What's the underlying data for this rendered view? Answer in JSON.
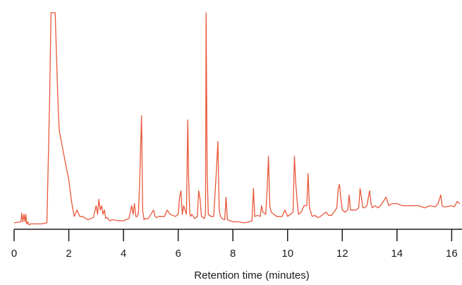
{
  "chart_data": {
    "type": "line",
    "title": "",
    "xlabel": "Retention time (minutes)",
    "ylabel": "",
    "xlim": [
      0,
      16.3
    ],
    "ylim": [
      0,
      100
    ],
    "grid": false,
    "xticks": [
      0,
      2,
      4,
      6,
      8,
      10,
      12,
      14,
      16
    ],
    "xtick_labels": [
      "0",
      "2",
      "4",
      "6",
      "8",
      "10",
      "12",
      "14",
      "16"
    ],
    "series": [
      {
        "color": "#e8573a",
        "x": [
          0,
          0.25,
          0.28,
          0.32,
          0.36,
          0.4,
          0.43,
          0.46,
          0.5,
          0.55,
          0.6,
          0.8,
          1.0,
          1.2,
          1.3,
          1.35,
          1.4,
          1.5,
          1.55,
          1.6,
          1.65,
          1.8,
          2.0,
          2.1,
          2.2,
          2.3,
          2.4,
          2.5,
          2.7,
          2.9,
          3.0,
          3.05,
          3.1,
          3.15,
          3.2,
          3.25,
          3.3,
          3.35,
          3.4,
          3.5,
          3.6,
          3.8,
          4.0,
          4.2,
          4.3,
          4.35,
          4.4,
          4.45,
          4.5,
          4.55,
          4.6,
          4.62,
          4.66,
          4.7,
          4.75,
          4.8,
          4.9,
          5.0,
          5.1,
          5.15,
          5.2,
          5.3,
          5.5,
          5.6,
          5.7,
          5.9,
          6.0,
          6.05,
          6.1,
          6.15,
          6.2,
          6.3,
          6.35,
          6.38,
          6.42,
          6.45,
          6.5,
          6.6,
          6.7,
          6.75,
          6.8,
          6.85,
          6.9,
          6.95,
          7.0,
          7.02,
          7.06,
          7.1,
          7.2,
          7.3,
          7.4,
          7.45,
          7.5,
          7.55,
          7.6,
          7.7,
          7.75,
          7.8,
          8.0,
          8.2,
          8.4,
          8.6,
          8.7,
          8.75,
          8.8,
          8.9,
          9.0,
          9.05,
          9.1,
          9.2,
          9.25,
          9.3,
          9.35,
          9.4,
          9.5,
          9.6,
          9.7,
          9.8,
          9.9,
          10.0,
          10.1,
          10.2,
          10.25,
          10.3,
          10.35,
          10.4,
          10.5,
          10.6,
          10.7,
          10.75,
          10.8,
          10.9,
          11.0,
          11.1,
          11.2,
          11.3,
          11.4,
          11.5,
          11.6,
          11.7,
          11.8,
          11.85,
          11.9,
          11.95,
          12.0,
          12.1,
          12.2,
          12.25,
          12.3,
          12.4,
          12.5,
          12.6,
          12.65,
          12.7,
          12.75,
          12.8,
          12.9,
          13.0,
          13.05,
          13.1,
          13.2,
          13.3,
          13.4,
          13.5,
          13.6,
          13.7,
          13.8,
          13.9,
          14.0,
          14.2,
          14.4,
          14.6,
          14.8,
          15.0,
          15.2,
          15.4,
          15.5,
          15.6,
          15.65,
          15.7,
          15.8,
          16.0,
          16.1,
          16.2,
          16.3
        ],
        "y": [
          2.0,
          2.5,
          6.5,
          2.5,
          6.0,
          2.5,
          6.0,
          1.5,
          2.5,
          1.0,
          1.5,
          1.5,
          1.5,
          2.0,
          60.0,
          100.0,
          100.0,
          100.0,
          80.0,
          60.0,
          45.0,
          35.0,
          22.0,
          12.0,
          5.0,
          8.0,
          5.0,
          5.0,
          3.5,
          4.5,
          10.0,
          6.0,
          13.0,
          8.0,
          10.0,
          6.0,
          8.0,
          4.0,
          4.5,
          3.0,
          3.5,
          3.0,
          3.0,
          4.0,
          10.0,
          6.0,
          11.0,
          5.0,
          5.0,
          7.0,
          25.0,
          35.0,
          52.0,
          8.0,
          3.5,
          4.0,
          4.0,
          6.0,
          8.0,
          5.0,
          4.5,
          5.0,
          5.0,
          8.0,
          6.0,
          5.0,
          6.0,
          14.0,
          17.0,
          6.0,
          10.0,
          6.0,
          50.0,
          24.0,
          7.0,
          5.0,
          6.0,
          4.0,
          5.0,
          17.0,
          13.0,
          5.0,
          4.5,
          4.0,
          6.0,
          100.0,
          25.0,
          6.0,
          5.0,
          5.0,
          27.0,
          40.0,
          8.0,
          5.0,
          4.0,
          3.5,
          14.0,
          3.5,
          2.5,
          2.5,
          2.0,
          2.5,
          3.0,
          18.0,
          5.0,
          5.5,
          5.0,
          10.0,
          7.0,
          6.0,
          17.0,
          33.0,
          10.0,
          7.0,
          6.0,
          5.0,
          5.0,
          5.0,
          8.0,
          5.0,
          6.0,
          7.0,
          33.0,
          20.0,
          12.0,
          6.0,
          7.0,
          10.0,
          10.0,
          25.0,
          9.0,
          5.0,
          5.5,
          4.5,
          5.0,
          6.0,
          7.0,
          5.5,
          5.5,
          7.0,
          9.0,
          18.0,
          20.0,
          13.0,
          8.0,
          7.0,
          8.0,
          15.0,
          8.0,
          8.0,
          8.0,
          9.0,
          18.0,
          14.0,
          9.0,
          9.0,
          10.0,
          17.0,
          11.0,
          9.0,
          10.0,
          9.0,
          10.0,
          12.0,
          14.0,
          10.0,
          11.0,
          11.0,
          11.0,
          10.0,
          10.0,
          10.0,
          10.0,
          9.0,
          10.0,
          9.5,
          11.0,
          15.0,
          10.0,
          9.5,
          9.5,
          10.0,
          9.5,
          12.0,
          11.0
        ]
      }
    ]
  }
}
